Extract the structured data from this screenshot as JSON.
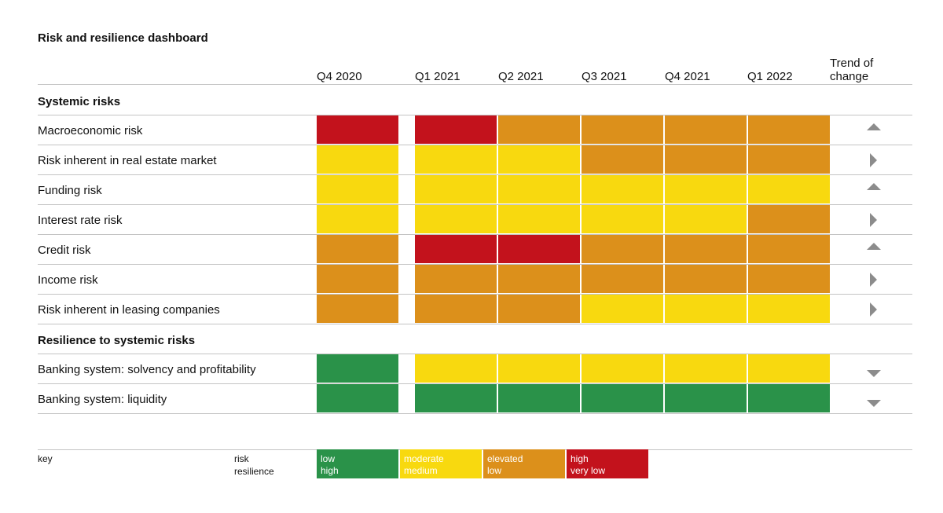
{
  "chart_data": {
    "type": "heatmap",
    "title": "Risk and resilience dashboard",
    "columns": [
      "Q4 2020",
      "Q1 2021",
      "Q2 2021",
      "Q3 2021",
      "Q4 2021",
      "Q1 2022"
    ],
    "trend_header": [
      "Trend of",
      "change"
    ],
    "sections": [
      {
        "name": "Systemic risks",
        "rows": [
          {
            "label": "Macroeconomic risk",
            "levels": [
              "high",
              "high",
              "elevated",
              "elevated",
              "elevated",
              "elevated"
            ],
            "trend": "up"
          },
          {
            "label": "Risk inherent in real estate market",
            "levels": [
              "moderate",
              "moderate",
              "moderate",
              "elevated",
              "elevated",
              "elevated"
            ],
            "trend": "flat"
          },
          {
            "label": "Funding risk",
            "levels": [
              "moderate",
              "moderate",
              "moderate",
              "moderate",
              "moderate",
              "moderate"
            ],
            "trend": "up"
          },
          {
            "label": "Interest rate risk",
            "levels": [
              "moderate",
              "moderate",
              "moderate",
              "moderate",
              "moderate",
              "elevated"
            ],
            "trend": "flat"
          },
          {
            "label": "Credit risk",
            "levels": [
              "elevated",
              "high",
              "high",
              "elevated",
              "elevated",
              "elevated"
            ],
            "trend": "up"
          },
          {
            "label": "Income risk",
            "levels": [
              "elevated",
              "elevated",
              "elevated",
              "elevated",
              "elevated",
              "elevated"
            ],
            "trend": "flat"
          },
          {
            "label": "Risk inherent in leasing companies",
            "levels": [
              "elevated",
              "elevated",
              "elevated",
              "moderate",
              "moderate",
              "moderate"
            ],
            "trend": "flat"
          }
        ]
      },
      {
        "name": "Resilience to systemic risks",
        "rows": [
          {
            "label": "Banking system: solvency and profitability",
            "levels": [
              "low",
              "moderate",
              "moderate",
              "moderate",
              "moderate",
              "moderate"
            ],
            "trend": "down"
          },
          {
            "label": "Banking system: liquidity",
            "levels": [
              "low",
              "low",
              "low",
              "low",
              "low",
              "low"
            ],
            "trend": "down"
          }
        ]
      }
    ],
    "level_colors": {
      "low": "#2a9249",
      "moderate": "#f8d90f",
      "elevated": "#dc901b",
      "high": "#c3121c"
    },
    "key": {
      "label": "key",
      "row_labels": [
        "risk",
        "resilience"
      ],
      "entries": [
        {
          "level": "low",
          "risk": "low",
          "resilience": "high"
        },
        {
          "level": "moderate",
          "risk": "moderate",
          "resilience": "medium"
        },
        {
          "level": "elevated",
          "risk": "elevated",
          "resilience": "low"
        },
        {
          "level": "high",
          "risk": "high",
          "resilience": "very low"
        }
      ]
    }
  }
}
